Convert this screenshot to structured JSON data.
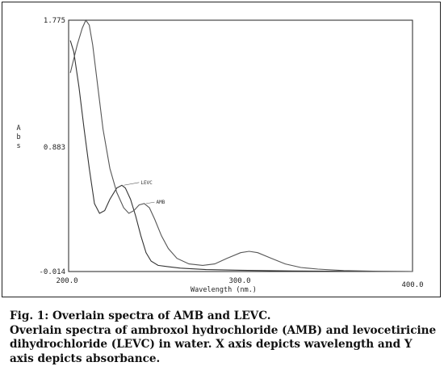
{
  "chart_data": {
    "type": "line",
    "title": "",
    "xlabel": "Wavelength (nm.)",
    "ylabel": "Abs",
    "xlim": [
      200.0,
      400.0
    ],
    "ylim": [
      -0.014,
      1.775
    ],
    "x_ticks": [
      "200.0",
      "300.0",
      "400.0"
    ],
    "y_ticks": [
      "-0.014",
      "0.883",
      "1.775"
    ],
    "grid": false,
    "series": [
      {
        "name": "LEVC",
        "color": "#333333",
        "points": [
          [
            201,
            1.63
          ],
          [
            203,
            1.55
          ],
          [
            206,
            1.3
          ],
          [
            209,
            1.0
          ],
          [
            212,
            0.72
          ],
          [
            215,
            0.47
          ],
          [
            218,
            0.4
          ],
          [
            221,
            0.42
          ],
          [
            224,
            0.5
          ],
          [
            228,
            0.58
          ],
          [
            231,
            0.6
          ],
          [
            233,
            0.58
          ],
          [
            236,
            0.5
          ],
          [
            239,
            0.38
          ],
          [
            242,
            0.24
          ],
          [
            245,
            0.12
          ],
          [
            248,
            0.06
          ],
          [
            252,
            0.03
          ],
          [
            258,
            0.02
          ],
          [
            265,
            0.01
          ],
          [
            280,
            0.0
          ],
          [
            300,
            -0.005
          ],
          [
            330,
            -0.01
          ],
          [
            370,
            -0.013
          ],
          [
            400,
            -0.014
          ]
        ]
      },
      {
        "name": "AMB",
        "color": "#555555",
        "points": [
          [
            201,
            1.4
          ],
          [
            205,
            1.6
          ],
          [
            208,
            1.72
          ],
          [
            210,
            1.775
          ],
          [
            212,
            1.74
          ],
          [
            214,
            1.6
          ],
          [
            217,
            1.3
          ],
          [
            220,
            1.0
          ],
          [
            224,
            0.72
          ],
          [
            228,
            0.55
          ],
          [
            232,
            0.44
          ],
          [
            235,
            0.4
          ],
          [
            238,
            0.42
          ],
          [
            241,
            0.46
          ],
          [
            244,
            0.47
          ],
          [
            247,
            0.44
          ],
          [
            250,
            0.36
          ],
          [
            254,
            0.24
          ],
          [
            258,
            0.15
          ],
          [
            263,
            0.08
          ],
          [
            270,
            0.04
          ],
          [
            278,
            0.03
          ],
          [
            285,
            0.04
          ],
          [
            292,
            0.08
          ],
          [
            300,
            0.12
          ],
          [
            305,
            0.13
          ],
          [
            310,
            0.12
          ],
          [
            318,
            0.08
          ],
          [
            326,
            0.04
          ],
          [
            335,
            0.015
          ],
          [
            345,
            0.003
          ],
          [
            360,
            -0.007
          ],
          [
            380,
            -0.012
          ],
          [
            400,
            -0.014
          ]
        ]
      }
    ],
    "annotations": [
      {
        "text": "LEVC",
        "x": 241,
        "y": 0.62
      },
      {
        "text": "AMB",
        "x": 250,
        "y": 0.48
      }
    ]
  },
  "caption": {
    "line1": "Fig. 1: Overlain spectra of AMB and LEVC.",
    "line2": "Overlain spectra of ambroxol hydrochloride (AMB) and levocetiricine",
    "line3": "dihydrochloride (LEVC) in water. X axis depicts wavelength and Y",
    "line4": "axis depicts absorbance."
  }
}
